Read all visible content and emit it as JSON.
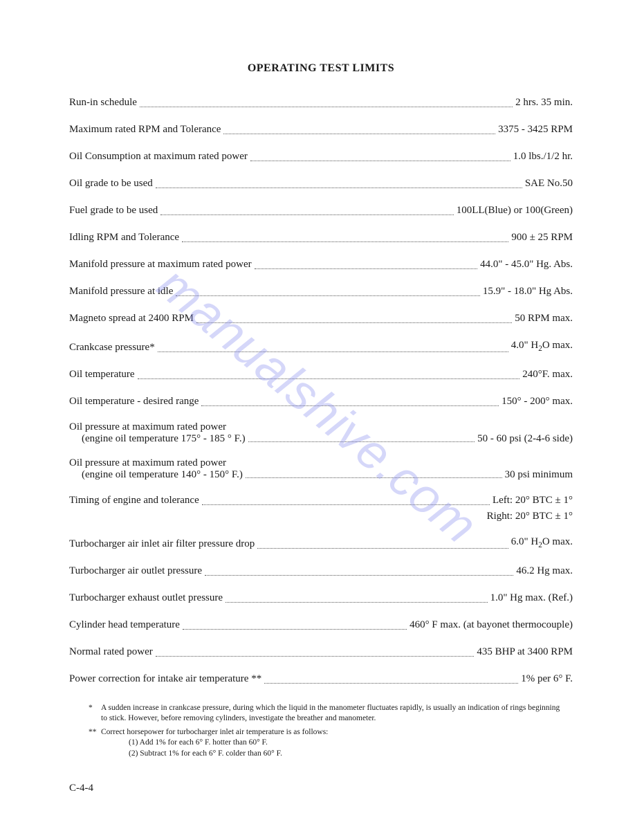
{
  "title": "OPERATING TEST LIMITS",
  "watermark": "manualshive.com",
  "page_number": "C-4-4",
  "entries": [
    {
      "label": "Run-in schedule",
      "value": "2 hrs. 35 min."
    },
    {
      "label": "Maximum rated RPM and Tolerance",
      "value": "3375 - 3425 RPM"
    },
    {
      "label": "Oil Consumption at maximum rated power",
      "value": "1.0 lbs./1/2 hr."
    },
    {
      "label": "Oil grade to be used",
      "value": "SAE No.50"
    },
    {
      "label": "Fuel grade to be used",
      "value": "100LL(Blue) or 100(Green)"
    },
    {
      "label": "Idling RPM and Tolerance",
      "value": "900 ± 25 RPM"
    },
    {
      "label": "Manifold pressure at maximum rated power",
      "value": "44.0\" - 45.0\" Hg. Abs."
    },
    {
      "label": "Manifold pressure at idle",
      "value": "15.9\" - 18.0\" Hg Abs."
    },
    {
      "label": "Magneto spread at 2400 RPM",
      "value": "50 RPM max."
    },
    {
      "label": "Crankcase pressure*",
      "value_html": "4.0\" H<sub>2</sub>O max."
    },
    {
      "label": "Oil temperature",
      "value": "240°F. max."
    },
    {
      "label": "Oil temperature - desired range",
      "value": "150° - 200° max."
    }
  ],
  "oil_pressure_1": {
    "line1": "Oil pressure at maximum rated power",
    "line2_label": "(engine oil temperature 175° - 185 ° F.)",
    "line2_value": "50 - 60 psi (2-4-6 side)"
  },
  "oil_pressure_2": {
    "line1": "Oil pressure at maximum rated power",
    "line2_label": "(engine oil temperature 140° - 150° F.)",
    "line2_value": "30 psi minimum"
  },
  "timing": {
    "label": "Timing of engine and tolerance",
    "value_line1": "Left: 20° BTC ± 1°",
    "value_line2": "Right: 20° BTC ± 1°"
  },
  "entries_after": [
    {
      "label": "Turbocharger air inlet air filter pressure drop",
      "value_html": "6.0\" H<sub>2</sub>O max."
    },
    {
      "label": "Turbocharger air outlet pressure",
      "value": "46.2 Hg max."
    },
    {
      "label": "Turbocharger exhaust outlet pressure",
      "value": "1.0\" Hg max. (Ref.)"
    },
    {
      "label": "Cylinder head temperature",
      "value": "460° F max. (at bayonet thermocouple)"
    },
    {
      "label": "Normal rated power",
      "value": "435 BHP at 3400 RPM"
    },
    {
      "label": "Power correction for intake air temperature **",
      "value": "1% per 6° F."
    }
  ],
  "footnotes": {
    "star": "A sudden increase in crankcase pressure, during which the liquid in the manometer fluctuates rapidly, is usually an indication of rings beginning to stick. However, before removing cylinders, investigate the breather and manometer.",
    "dstar_intro": "Correct horsepower for turbocharger inlet air temperature is as follows:",
    "dstar_1": "(1)   Add 1% for each 6° F. hotter than 60° F.",
    "dstar_2": "(2)   Subtract 1% for each 6° F. colder than 60° F."
  }
}
